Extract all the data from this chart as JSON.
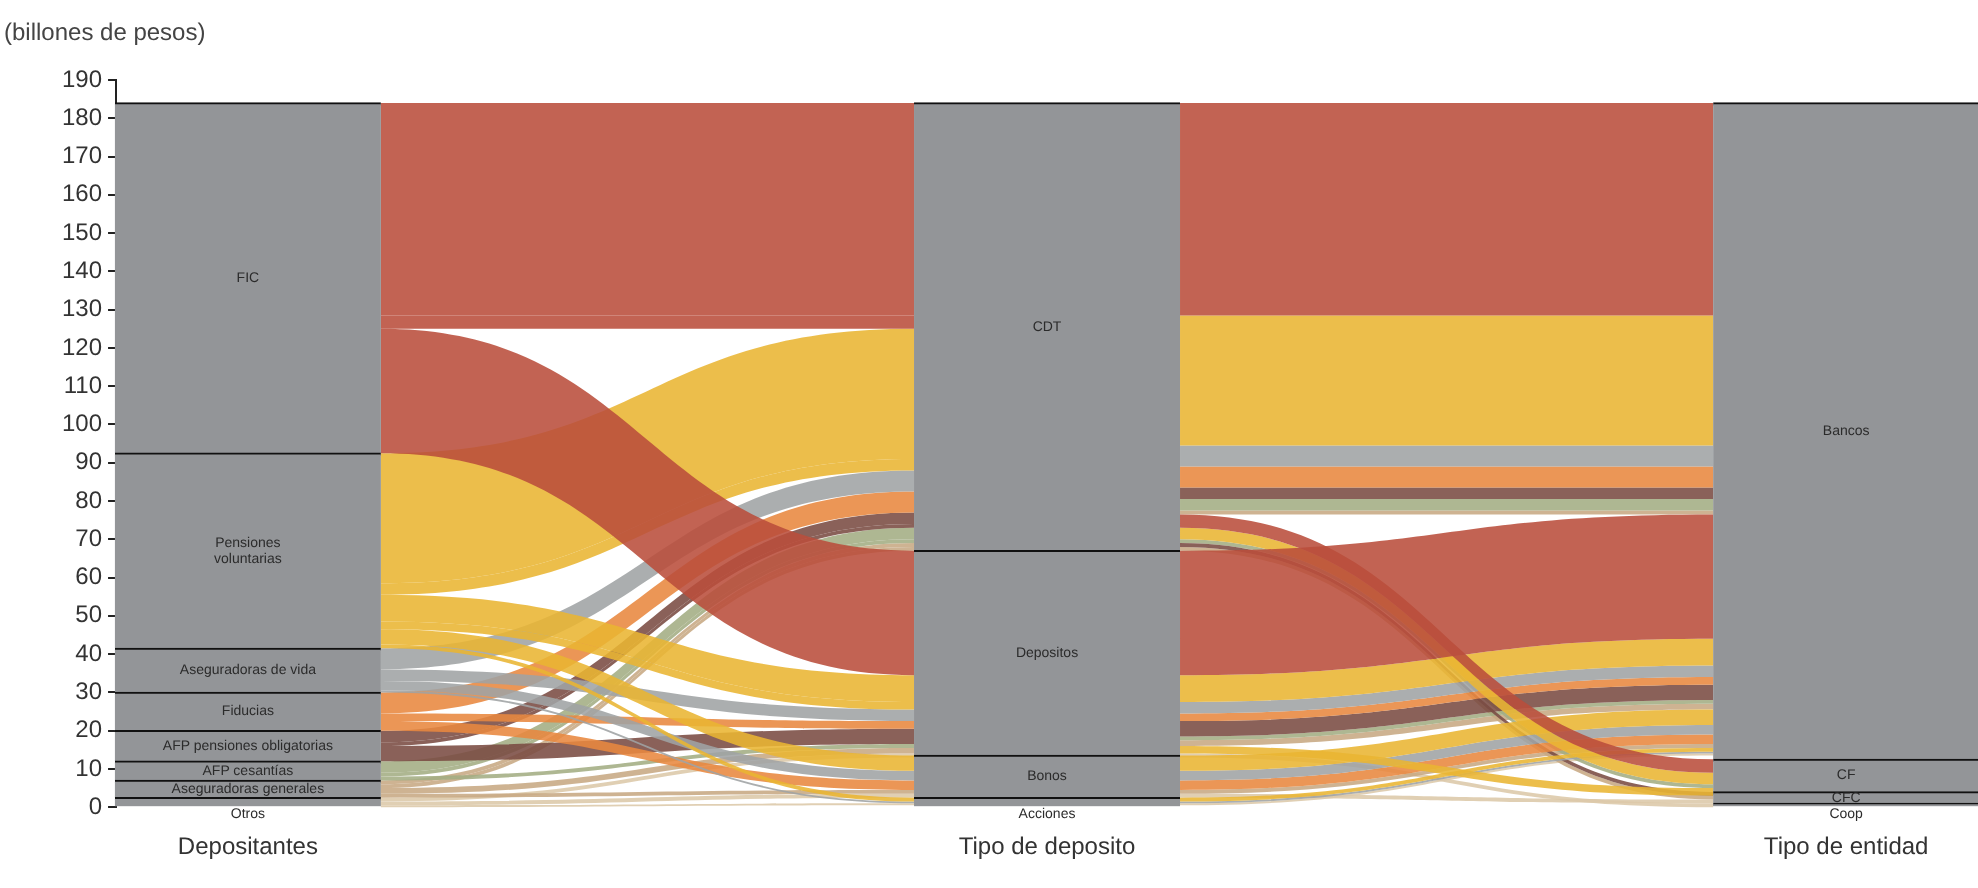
{
  "chart_data": {
    "type": "bar",
    "stacked": true,
    "ylabel": "(billones de pesos)",
    "categories": [
      "Depositantes",
      "Tipo de deposito",
      "Tipo de entidad"
    ],
    "ylim": [
      0,
      190
    ],
    "yticks": [
      0,
      10,
      20,
      30,
      40,
      50,
      60,
      70,
      80,
      90,
      100,
      110,
      120,
      130,
      140,
      150,
      160,
      170,
      180,
      190
    ],
    "legend": false,
    "grid": false,
    "series": [
      {
        "name": "Otros",
        "color": "#939598",
        "values": [
          2.5,
          null,
          null
        ]
      },
      {
        "name": "Aseguradoras generales",
        "color": "#939598",
        "values": [
          4.5,
          null,
          null
        ]
      },
      {
        "name": "AFP cesantías",
        "color": "#939598",
        "values": [
          5,
          null,
          null
        ]
      },
      {
        "name": "AFP pensiones obligatorias",
        "color": "#939598",
        "values": [
          8,
          null,
          null
        ]
      },
      {
        "name": "Fiducias",
        "color": "#939598",
        "values": [
          10,
          null,
          null
        ]
      },
      {
        "name": "Aseguradoras de vida",
        "color": "#939598",
        "values": [
          11.5,
          null,
          null
        ]
      },
      {
        "name": "Pensiones voluntarias",
        "color": "#939598",
        "values": [
          51,
          null,
          null
        ]
      },
      {
        "name": "FIC",
        "color": "#939598",
        "values": [
          91.5,
          null,
          null
        ]
      },
      {
        "name": "Acciones",
        "color": "#939598",
        "values": [
          null,
          2.5,
          null
        ]
      },
      {
        "name": "Bonos",
        "color": "#939598",
        "values": [
          null,
          11,
          null
        ]
      },
      {
        "name": "Depositos",
        "color": "#939598",
        "values": [
          null,
          53.5,
          null
        ]
      },
      {
        "name": "CDT",
        "color": "#939598",
        "values": [
          null,
          117,
          null
        ]
      },
      {
        "name": "Coop",
        "color": "#939598",
        "values": [
          null,
          null,
          1
        ]
      },
      {
        "name": "CFC",
        "color": "#939598",
        "values": [
          null,
          null,
          3
        ]
      },
      {
        "name": "CF",
        "color": "#939598",
        "values": [
          null,
          null,
          8.5
        ]
      },
      {
        "name": "Bancos",
        "color": "#939598",
        "values": [
          null,
          null,
          171.5
        ]
      }
    ]
  }
}
